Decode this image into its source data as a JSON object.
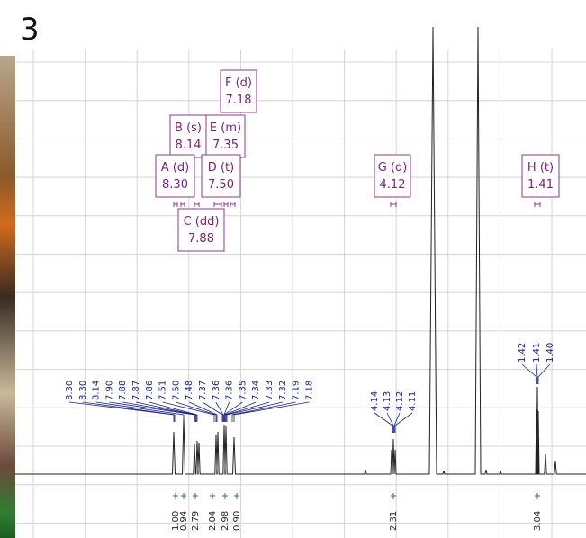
{
  "figure_label": "3",
  "multiplets": [
    {
      "label": "F (d)",
      "shift": "7.18"
    },
    {
      "label": "B (s)",
      "shift": "8.14"
    },
    {
      "label": "E (m)",
      "shift": "7.35"
    },
    {
      "label": "A (d)",
      "shift": "8.30"
    },
    {
      "label": "D (t)",
      "shift": "7.50"
    },
    {
      "label": "C (dd)",
      "shift": "7.88"
    },
    {
      "label": "G (q)",
      "shift": "4.12"
    },
    {
      "label": "H (t)",
      "shift": "1.41"
    }
  ],
  "peak_labels": [
    "8.30",
    "8.30",
    "8.14",
    "7.90",
    "7.88",
    "7.87",
    "7.86",
    "7.51",
    "7.50",
    "7.48",
    "7.37",
    "7.36",
    "7.36",
    "7.35",
    "7.34",
    "7.33",
    "7.32",
    "7.19",
    "7.18",
    "4.14",
    "4.13",
    "4.12",
    "4.11",
    "1.42",
    "1.41",
    "1.40"
  ],
  "integrals": [
    "1.00",
    "0.94",
    "2.79",
    "2.04",
    "2.98",
    "0.90",
    "2.31",
    "3.04"
  ]
}
